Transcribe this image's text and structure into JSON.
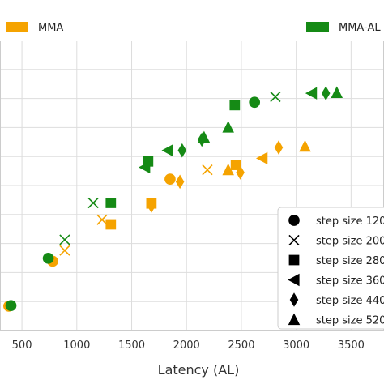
{
  "chart_data": {
    "type": "scatter",
    "title": "",
    "xlabel": "Latency (AL)",
    "ylabel": "",
    "xlim": [
      300,
      3800
    ],
    "ylim": [
      0,
      100
    ],
    "xticks": [
      500,
      1000,
      1500,
      2000,
      2500,
      3000,
      3500
    ],
    "grid": true,
    "legend_series_placement": "top",
    "legend_markers_placement": "lower-right",
    "series": [
      {
        "name": "MMA",
        "color": "#f5a300",
        "points": [
          {
            "x": 380,
            "y": 8.4,
            "marker": "circle"
          },
          {
            "x": 780,
            "y": 23.9,
            "marker": "circle"
          },
          {
            "x": 1850,
            "y": 52.2,
            "marker": "circle"
          },
          {
            "x": 890,
            "y": 27.6,
            "marker": "x"
          },
          {
            "x": 1230,
            "y": 38.2,
            "marker": "x"
          },
          {
            "x": 2190,
            "y": 55.4,
            "marker": "x"
          },
          {
            "x": 1310,
            "y": 36.6,
            "marker": "square"
          },
          {
            "x": 1680,
            "y": 43.8,
            "marker": "square"
          },
          {
            "x": 2450,
            "y": 57.1,
            "marker": "square"
          },
          {
            "x": 2690,
            "y": 59.4,
            "marker": "triangle-left"
          },
          {
            "x": 1680,
            "y": 43.0,
            "marker": "diamond"
          },
          {
            "x": 1940,
            "y": 51.3,
            "marker": "diamond"
          },
          {
            "x": 2490,
            "y": 54.5,
            "marker": "diamond"
          },
          {
            "x": 2840,
            "y": 63.1,
            "marker": "diamond"
          },
          {
            "x": 2380,
            "y": 55.4,
            "marker": "triangle-up"
          },
          {
            "x": 3080,
            "y": 63.5,
            "marker": "triangle-up"
          }
        ]
      },
      {
        "name": "MMA-AL",
        "color": "#158a15",
        "points": [
          {
            "x": 400,
            "y": 8.6,
            "marker": "circle"
          },
          {
            "x": 740,
            "y": 24.9,
            "marker": "circle"
          },
          {
            "x": 2620,
            "y": 78.7,
            "marker": "circle"
          },
          {
            "x": 890,
            "y": 31.3,
            "marker": "x"
          },
          {
            "x": 1150,
            "y": 44.0,
            "marker": "x"
          },
          {
            "x": 2810,
            "y": 80.6,
            "marker": "x"
          },
          {
            "x": 1310,
            "y": 44.0,
            "marker": "square"
          },
          {
            "x": 1650,
            "y": 58.3,
            "marker": "square"
          },
          {
            "x": 2440,
            "y": 77.7,
            "marker": "square"
          },
          {
            "x": 1620,
            "y": 56.3,
            "marker": "triangle-left"
          },
          {
            "x": 1830,
            "y": 62.1,
            "marker": "triangle-left"
          },
          {
            "x": 3140,
            "y": 81.8,
            "marker": "triangle-left"
          },
          {
            "x": 1960,
            "y": 62.1,
            "marker": "diamond"
          },
          {
            "x": 2140,
            "y": 65.8,
            "marker": "diamond"
          },
          {
            "x": 3270,
            "y": 81.8,
            "marker": "diamond"
          },
          {
            "x": 2160,
            "y": 66.6,
            "marker": "triangle-up"
          },
          {
            "x": 2380,
            "y": 70.1,
            "marker": "triangle-up"
          },
          {
            "x": 3370,
            "y": 82.0,
            "marker": "triangle-up"
          }
        ]
      }
    ],
    "marker_legend": [
      {
        "marker": "circle",
        "label": "step size 120"
      },
      {
        "marker": "x",
        "label": "step size 200"
      },
      {
        "marker": "square",
        "label": "step size 280"
      },
      {
        "marker": "triangle-left",
        "label": "step size 360"
      },
      {
        "marker": "diamond",
        "label": "step size 440"
      },
      {
        "marker": "triangle-up",
        "label": "step size 520"
      }
    ]
  }
}
